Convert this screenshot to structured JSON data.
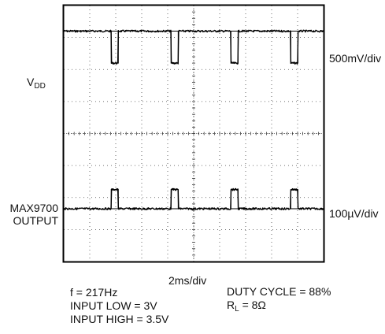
{
  "chart_data": {
    "type": "line",
    "grid": true,
    "x": {
      "divisions": 10,
      "scale": "2ms/div",
      "period_ms": 4.6083,
      "first_pulse_ms": 3.65,
      "pulse_width_ms": 0.55,
      "pulse_count": 4
    },
    "y": {
      "divisions": 8
    },
    "series": [
      {
        "name": "VDD",
        "scale": "500mV/div",
        "baseline_div": 7.2,
        "pulse_delta_div": -1.0
      },
      {
        "name": "MAX9700 OUTPUT",
        "scale": "100µV/div",
        "baseline_div": 1.65,
        "pulse_delta_div": 0.6
      }
    ]
  },
  "labels": {
    "vdd_main": "V",
    "vdd_sub": "DD",
    "vdd_scale": "500mV/div",
    "out_line1": "MAX9700",
    "out_line2": "OUTPUT",
    "out_scale": "100µV/div",
    "timebase": "2ms/div"
  },
  "notes": {
    "freq": "f = 217Hz",
    "input_low": "INPUT LOW = 3V",
    "input_high": "INPUT HIGH = 3.5V",
    "duty": "DUTY CYCLE = 88%",
    "rl_main": "R",
    "rl_sub": "L",
    "rl_value": " = 8Ω"
  }
}
